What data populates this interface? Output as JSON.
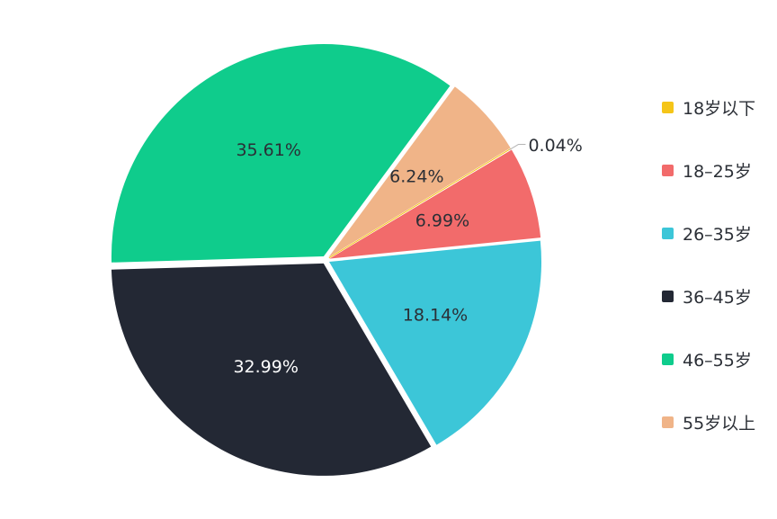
{
  "chart_data": {
    "type": "pie",
    "categories": [
      "18岁以下",
      "18-25岁",
      "26-35岁",
      "36-45岁",
      "46-55岁",
      "55岁以上"
    ],
    "values": [
      0.04,
      6.99,
      18.14,
      32.99,
      35.61,
      6.24
    ],
    "labels": [
      "0.04%",
      "6.99%",
      "18.14%",
      "32.99%",
      "35.61%",
      "6.24%"
    ],
    "colors": [
      "#f5c518",
      "#f26b6b",
      "#3cc6d8",
      "#232834",
      "#0fcc8c",
      "#f0b488"
    ],
    "label_colors": [
      "#2b2f36",
      "#2b2f36",
      "#2b2f36",
      "#ffffff",
      "#2b2f36",
      "#2b2f36"
    ],
    "legend_position": "right",
    "start_angle_deg": 59,
    "direction": "clockwise"
  },
  "legend": {
    "items": [
      {
        "label": "18岁以下",
        "color": "#f5c518"
      },
      {
        "label": "18–25岁",
        "color": "#f26b6b"
      },
      {
        "label": "26–35岁",
        "color": "#3cc6d8"
      },
      {
        "label": "36–45岁",
        "color": "#232834"
      },
      {
        "label": "46–55岁",
        "color": "#0fcc8c"
      },
      {
        "label": "55岁以上",
        "color": "#f0b488"
      }
    ]
  }
}
